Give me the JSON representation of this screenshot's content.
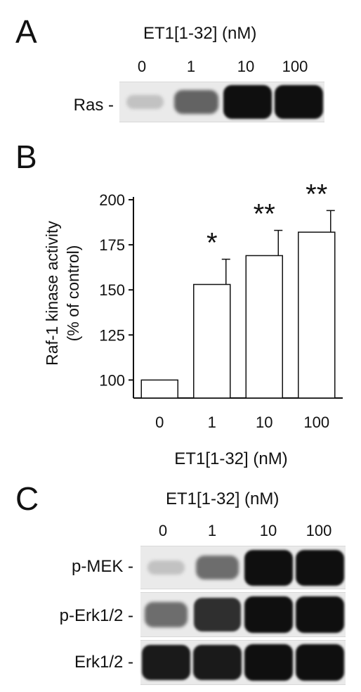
{
  "panel_a": {
    "letter": "A",
    "condition": "ET1[1-32] (nM)",
    "lanes": [
      "0",
      "1",
      "10",
      "100"
    ],
    "rows": [
      {
        "label": "Ras -",
        "intensity": [
          0.15,
          0.6,
          1.0,
          1.0
        ]
      }
    ]
  },
  "panel_b": {
    "letter": "B",
    "chart_data": {
      "type": "bar",
      "categories": [
        "0",
        "1",
        "10",
        "100"
      ],
      "values": [
        100,
        153,
        169,
        182
      ],
      "errors": [
        0,
        14,
        14,
        12
      ],
      "significance": [
        "",
        "*",
        "**",
        "**"
      ],
      "ylabel_line1": "Raf-1 kinase activity",
      "ylabel_line2": "(% of control)",
      "xlabel": "ET1[1-32] (nM)",
      "ylim": [
        90,
        200
      ],
      "yticks": [
        100,
        125,
        150,
        175,
        200
      ],
      "bar_fill": "#ffffff",
      "bar_stroke": "#111111",
      "grid": false
    }
  },
  "panel_c": {
    "letter": "C",
    "condition": "ET1[1-32] (nM)",
    "lanes": [
      "0",
      "1",
      "10",
      "100"
    ],
    "rows": [
      {
        "label": "p-MEK -",
        "intensity": [
          0.15,
          0.55,
          1.0,
          1.0
        ]
      },
      {
        "label": "p-Erk1/2 -",
        "intensity": [
          0.55,
          0.85,
          1.0,
          1.0
        ]
      },
      {
        "label": "Erk1/2 -",
        "intensity": [
          0.95,
          0.95,
          1.0,
          1.0
        ]
      }
    ]
  }
}
